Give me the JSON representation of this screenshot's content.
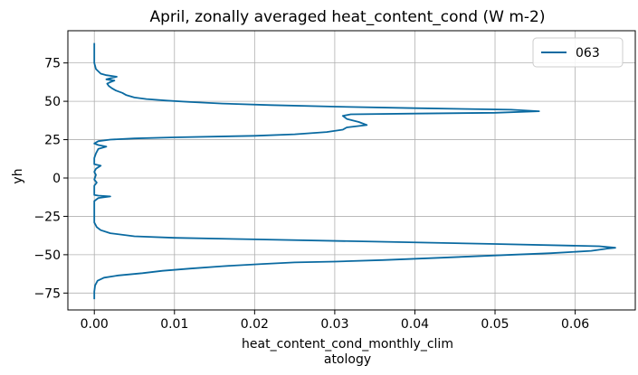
{
  "chart_data": {
    "type": "line",
    "title": "April, zonally averaged heat_content_cond (W m-2)",
    "xlabel_line1": "heat_content_cond_monthly_clim",
    "xlabel_line2": "atology",
    "ylabel": "yh",
    "xlim": [
      -0.0033,
      0.0675
    ],
    "ylim": [
      -86,
      96
    ],
    "xticks": [
      0.0,
      0.01,
      0.02,
      0.03,
      0.04,
      0.05,
      0.06
    ],
    "xtick_labels": [
      "0.00",
      "0.01",
      "0.02",
      "0.03",
      "0.04",
      "0.05",
      "0.06"
    ],
    "yticks": [
      75,
      50,
      25,
      0,
      -25,
      -50,
      -75
    ],
    "ytick_labels": [
      "75",
      "50",
      "25",
      "0",
      "−25",
      "−50",
      "−75"
    ],
    "grid": true,
    "legend_position": "top-right",
    "series": [
      {
        "name": "063",
        "color": "#0a6aa1",
        "points": [
          [
            0.0,
            -79
          ],
          [
            0.0,
            -74
          ],
          [
            0.0001,
            -70
          ],
          [
            0.0004,
            -67
          ],
          [
            0.0012,
            -65
          ],
          [
            0.003,
            -63.5
          ],
          [
            0.006,
            -62
          ],
          [
            0.0085,
            -60.5
          ],
          [
            0.012,
            -59
          ],
          [
            0.016,
            -57.5
          ],
          [
            0.021,
            -56
          ],
          [
            0.025,
            -55
          ],
          [
            0.03,
            -54.5
          ],
          [
            0.036,
            -53.5
          ],
          [
            0.043,
            -52
          ],
          [
            0.05,
            -50.5
          ],
          [
            0.057,
            -49
          ],
          [
            0.062,
            -47.5
          ],
          [
            0.064,
            -46
          ],
          [
            0.065,
            -45.5
          ],
          [
            0.063,
            -44.5
          ],
          [
            0.05,
            -43
          ],
          [
            0.035,
            -41.5
          ],
          [
            0.02,
            -40
          ],
          [
            0.01,
            -39
          ],
          [
            0.005,
            -38
          ],
          [
            0.002,
            -36
          ],
          [
            0.0008,
            -34
          ],
          [
            0.0003,
            -32
          ],
          [
            0.0,
            -29
          ],
          [
            0.0,
            -20
          ],
          [
            0.0,
            -15
          ],
          [
            0.0005,
            -13
          ],
          [
            0.002,
            -12
          ],
          [
            0.0005,
            -11.5
          ],
          [
            0.0,
            -11
          ],
          [
            0.0,
            -5
          ],
          [
            0.0003,
            -3
          ],
          [
            0.0,
            -1
          ],
          [
            0.0002,
            2
          ],
          [
            0.0,
            4
          ],
          [
            0.0002,
            6
          ],
          [
            0.0008,
            8
          ],
          [
            0.0,
            9
          ],
          [
            0.0,
            13
          ],
          [
            0.0002,
            16
          ],
          [
            0.0005,
            19
          ],
          [
            0.0015,
            20.5
          ],
          [
            0.0005,
            21.5
          ],
          [
            0.0,
            22.5
          ],
          [
            0.0005,
            24
          ],
          [
            0.002,
            25
          ],
          [
            0.005,
            25.8
          ],
          [
            0.01,
            26.5
          ],
          [
            0.02,
            27.5
          ],
          [
            0.025,
            28.5
          ],
          [
            0.029,
            30
          ],
          [
            0.031,
            31.5
          ],
          [
            0.0315,
            33
          ],
          [
            0.034,
            34.5
          ],
          [
            0.033,
            36.5
          ],
          [
            0.0315,
            38.5
          ],
          [
            0.031,
            40.5
          ],
          [
            0.032,
            41.5
          ],
          [
            0.04,
            42
          ],
          [
            0.05,
            42.5
          ],
          [
            0.0555,
            43.5
          ],
          [
            0.052,
            44.5
          ],
          [
            0.04,
            45.5
          ],
          [
            0.03,
            46.5
          ],
          [
            0.022,
            47.5
          ],
          [
            0.016,
            48.5
          ],
          [
            0.012,
            49.5
          ],
          [
            0.009,
            50.5
          ],
          [
            0.0065,
            51.5
          ],
          [
            0.005,
            52.5
          ],
          [
            0.004,
            54
          ],
          [
            0.0035,
            55.5
          ],
          [
            0.0027,
            57
          ],
          [
            0.0022,
            58.5
          ],
          [
            0.0018,
            60
          ],
          [
            0.0016,
            61.5
          ],
          [
            0.002,
            62.5
          ],
          [
            0.0025,
            63.5
          ],
          [
            0.0015,
            64.3
          ],
          [
            0.002,
            65
          ],
          [
            0.0028,
            66
          ],
          [
            0.0015,
            67
          ],
          [
            0.0008,
            68
          ],
          [
            0.0005,
            69.5
          ],
          [
            0.0002,
            71
          ],
          [
            0.0001,
            73
          ],
          [
            0.0,
            75
          ],
          [
            0.0,
            80
          ],
          [
            0.0,
            85
          ],
          [
            0.0,
            88
          ]
        ]
      }
    ]
  }
}
